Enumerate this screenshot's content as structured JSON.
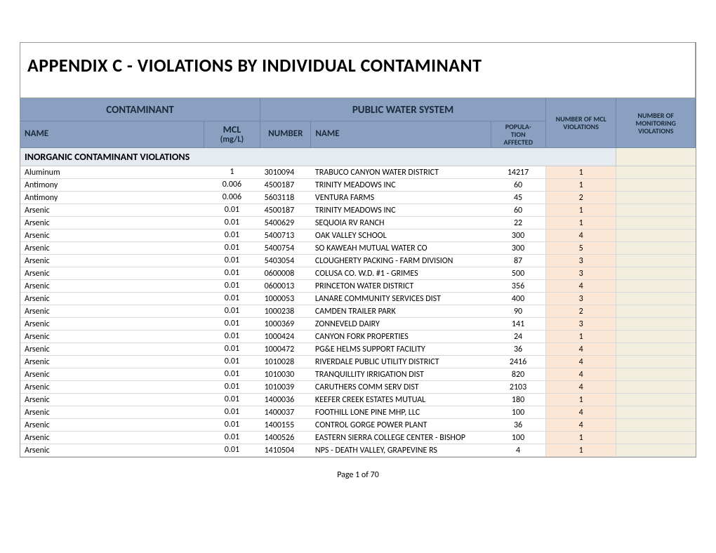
{
  "title": "APPENDIX C - VIOLATIONS BY INDIVIDUAL CONTAMINANT",
  "headers": {
    "contaminant_group": "CONTAMINANT",
    "pws_group": "PUBLIC WATER SYSTEM",
    "name": "NAME",
    "mcl": "MCL (mg/L)",
    "number": "NUMBER",
    "pws_name": "NAME",
    "population": "POPULA- TION AFFECTED",
    "mcl_viol": "NUMBER OF MCL VIOLATIONS",
    "mon_viol": "NUMBER OF MONITORING VIOLATIONS"
  },
  "section_label": "INORGANIC  CONTAMINANT VIOLATIONS",
  "footer": "Page 1 of 70",
  "colwidths": {
    "name": 260,
    "mcl": 80,
    "number": 72,
    "pws": 255,
    "pop": 78,
    "viol": 100,
    "monviol": 112
  },
  "colors": {
    "header_bg": "#8aa0c0",
    "header_border": "#6f86a8",
    "section_bg": "#e6ebf2",
    "viol_bg": "#fce6d6",
    "monviol_bg": "#f3efdf",
    "row_border": "#d9d9d9"
  },
  "rows": [
    {
      "name": "Aluminum",
      "mcl": "1",
      "number": "3010094",
      "pws": "TRABUCO CANYON WATER DISTRICT",
      "pop": "14217",
      "viol": "1"
    },
    {
      "name": "Antimony",
      "mcl": "0.006",
      "number": "4500187",
      "pws": "TRINITY MEADOWS INC",
      "pop": "60",
      "viol": "1"
    },
    {
      "name": "Antimony",
      "mcl": "0.006",
      "number": "5603118",
      "pws": "VENTURA FARMS",
      "pop": "45",
      "viol": "2"
    },
    {
      "name": "Arsenic",
      "mcl": "0.01",
      "number": "4500187",
      "pws": "TRINITY MEADOWS INC",
      "pop": "60",
      "viol": "1"
    },
    {
      "name": "Arsenic",
      "mcl": "0.01",
      "number": "5400629",
      "pws": "SEQUOIA RV RANCH",
      "pop": "22",
      "viol": "1"
    },
    {
      "name": "Arsenic",
      "mcl": "0.01",
      "number": "5400713",
      "pws": "OAK VALLEY SCHOOL",
      "pop": "300",
      "viol": "4"
    },
    {
      "name": "Arsenic",
      "mcl": "0.01",
      "number": "5400754",
      "pws": "SO KAWEAH MUTUAL WATER CO",
      "pop": "300",
      "viol": "5"
    },
    {
      "name": "Arsenic",
      "mcl": "0.01",
      "number": "5403054",
      "pws": "CLOUGHERTY PACKING - FARM DIVISION",
      "pop": "87",
      "viol": "3"
    },
    {
      "name": "Arsenic",
      "mcl": "0.01",
      "number": "0600008",
      "pws": "COLUSA CO. W.D. #1 - GRIMES",
      "pop": "500",
      "viol": "3"
    },
    {
      "name": "Arsenic",
      "mcl": "0.01",
      "number": "0600013",
      "pws": "PRINCETON WATER DISTRICT",
      "pop": "356",
      "viol": "4"
    },
    {
      "name": "Arsenic",
      "mcl": "0.01",
      "number": "1000053",
      "pws": "LANARE COMMUNITY SERVICES DIST",
      "pop": "400",
      "viol": "3"
    },
    {
      "name": "Arsenic",
      "mcl": "0.01",
      "number": "1000238",
      "pws": "CAMDEN TRAILER PARK",
      "pop": "90",
      "viol": "2"
    },
    {
      "name": "Arsenic",
      "mcl": "0.01",
      "number": "1000369",
      "pws": "ZONNEVELD DAIRY",
      "pop": "141",
      "viol": "3"
    },
    {
      "name": "Arsenic",
      "mcl": "0.01",
      "number": "1000424",
      "pws": "CANYON FORK PROPERTIES",
      "pop": "24",
      "viol": "1"
    },
    {
      "name": "Arsenic",
      "mcl": "0.01",
      "number": "1000472",
      "pws": "PG&E HELMS SUPPORT FACILITY",
      "pop": "36",
      "viol": "4"
    },
    {
      "name": "Arsenic",
      "mcl": "0.01",
      "number": "1010028",
      "pws": "RIVERDALE PUBLIC UTILITY DISTRICT",
      "pop": "2416",
      "viol": "4"
    },
    {
      "name": "Arsenic",
      "mcl": "0.01",
      "number": "1010030",
      "pws": "TRANQUILLITY IRRIGATION DIST",
      "pop": "820",
      "viol": "4"
    },
    {
      "name": "Arsenic",
      "mcl": "0.01",
      "number": "1010039",
      "pws": "CARUTHERS COMM SERV DIST",
      "pop": "2103",
      "viol": "4"
    },
    {
      "name": "Arsenic",
      "mcl": "0.01",
      "number": "1400036",
      "pws": "KEEFER CREEK ESTATES MUTUAL",
      "pop": "180",
      "viol": "1"
    },
    {
      "name": "Arsenic",
      "mcl": "0.01",
      "number": "1400037",
      "pws": "FOOTHILL LONE PINE MHP, LLC",
      "pop": "100",
      "viol": "4"
    },
    {
      "name": "Arsenic",
      "mcl": "0.01",
      "number": "1400155",
      "pws": "CONTROL GORGE POWER PLANT",
      "pop": "36",
      "viol": "4"
    },
    {
      "name": "Arsenic",
      "mcl": "0.01",
      "number": "1400526",
      "pws": "EASTERN SIERRA COLLEGE CENTER - BISHOP",
      "pop": "100",
      "viol": "1"
    },
    {
      "name": "Arsenic",
      "mcl": "0.01",
      "number": "1410504",
      "pws": "NPS - DEATH VALLEY, GRAPEVINE RS",
      "pop": "4",
      "viol": "1"
    }
  ]
}
